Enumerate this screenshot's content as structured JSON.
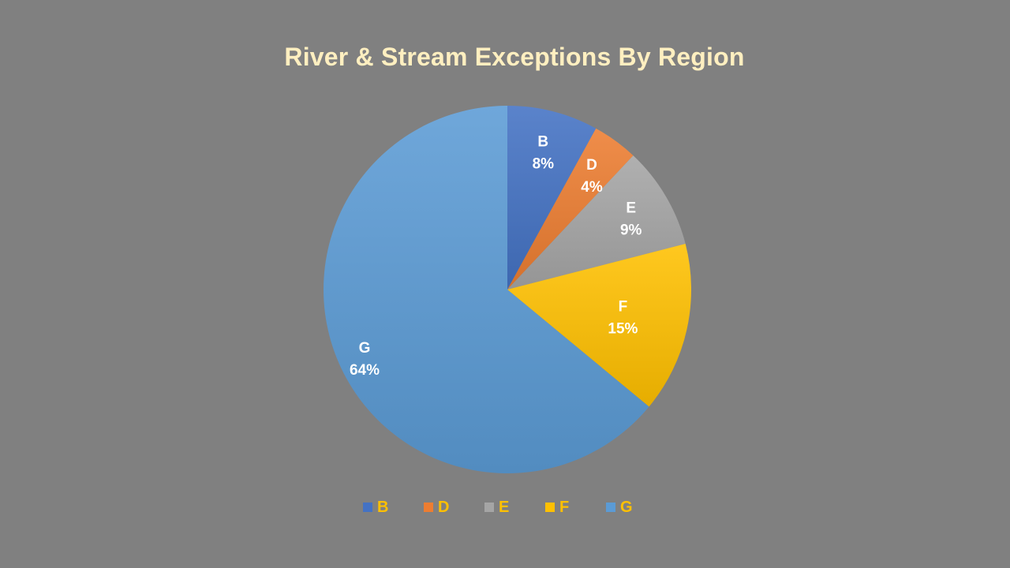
{
  "chart_data": {
    "type": "pie",
    "title": "River & Stream Exceptions By Region",
    "legend_position": "bottom",
    "categories": [
      "B",
      "D",
      "E",
      "F",
      "G"
    ],
    "values": [
      8,
      4,
      9,
      15,
      64
    ],
    "value_labels": [
      "8%",
      "4%",
      "9%",
      "15%",
      "64%"
    ],
    "colors": [
      "#4472c4",
      "#ed7d31",
      "#a5a5a5",
      "#ffc000",
      "#5b9bd5"
    ],
    "label_color": "#ffffff",
    "legend_text_color": "#ffc000",
    "title_color": "#ffefc0"
  }
}
